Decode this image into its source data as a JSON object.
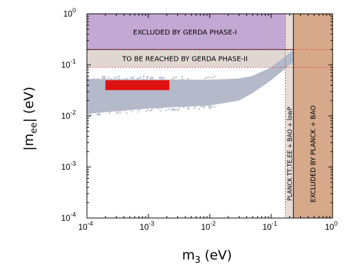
{
  "chart_data": {
    "type": "scatter",
    "xscale": "log",
    "yscale": "log",
    "xlim": [
      0.0001,
      1
    ],
    "ylim": [
      0.0001,
      1
    ],
    "grid": false,
    "xlabel": {
      "main": "m",
      "sub": "3",
      "unit": " (eV)"
    },
    "ylabel": {
      "open": "|m",
      "sub": "ee",
      "close": "| (eV)"
    },
    "x_ticks": [
      {
        "value": 0.0001,
        "base": "10",
        "exp": "-4"
      },
      {
        "value": 0.001,
        "base": "10",
        "exp": "-3"
      },
      {
        "value": 0.01,
        "base": "10",
        "exp": "-2"
      },
      {
        "value": 0.1,
        "base": "10",
        "exp": "-1"
      },
      {
        "value": 1,
        "base": "10",
        "exp": "0"
      }
    ],
    "y_ticks": [
      {
        "value": 0.0001,
        "base": "10",
        "exp": "-4"
      },
      {
        "value": 0.001,
        "base": "10",
        "exp": "-3"
      },
      {
        "value": 0.01,
        "base": "10",
        "exp": "-2"
      },
      {
        "value": 0.1,
        "base": "10",
        "exp": "-1"
      },
      {
        "value": 1,
        "base": "10",
        "exp": "0"
      }
    ],
    "colors": {
      "gerda1": "#c4a8d4",
      "gerda2": "#e0d7d3",
      "planck_ttteee": "#e8dcd6",
      "planck_bao": "#d6a98a",
      "allowed_band": "#b4bac9",
      "red_bar": "#dd1111",
      "dashed": "#e03030"
    },
    "regions": [
      {
        "label": "EXCLUDED BY GERDA PHASE-I",
        "x_range": [
          0.0001,
          1
        ],
        "y_range": [
          0.2,
          1
        ]
      },
      {
        "label": "TO BE REACHED BY GERDA PHASE-II",
        "x_range": [
          0.0001,
          1
        ],
        "y_range": [
          0.09,
          0.2
        ]
      },
      {
        "label": "PLANCK TT,TE,EE + BAO + lowP",
        "x_range": [
          0.17,
          0.23
        ],
        "y_range": [
          0.0001,
          1
        ]
      },
      {
        "label": "EXCLUDED BY PLANCK + BAO",
        "x_range": [
          0.23,
          1
        ],
        "y_range": [
          0.0001,
          1
        ]
      }
    ],
    "allowed_band": {
      "x": [
        0.0001,
        0.001,
        0.01,
        0.03,
        0.05,
        0.1,
        0.2,
        0.4,
        1.0
      ],
      "upper": [
        0.053,
        0.052,
        0.051,
        0.054,
        0.061,
        0.09,
        0.17,
        0.31,
        0.55
      ],
      "lower": [
        0.011,
        0.014,
        0.016,
        0.02,
        0.028,
        0.05,
        0.1,
        0.2,
        0.42
      ]
    },
    "red_bar": {
      "x_range": [
        0.0002,
        0.0022
      ],
      "y_range": [
        0.032,
        0.05
      ]
    }
  }
}
